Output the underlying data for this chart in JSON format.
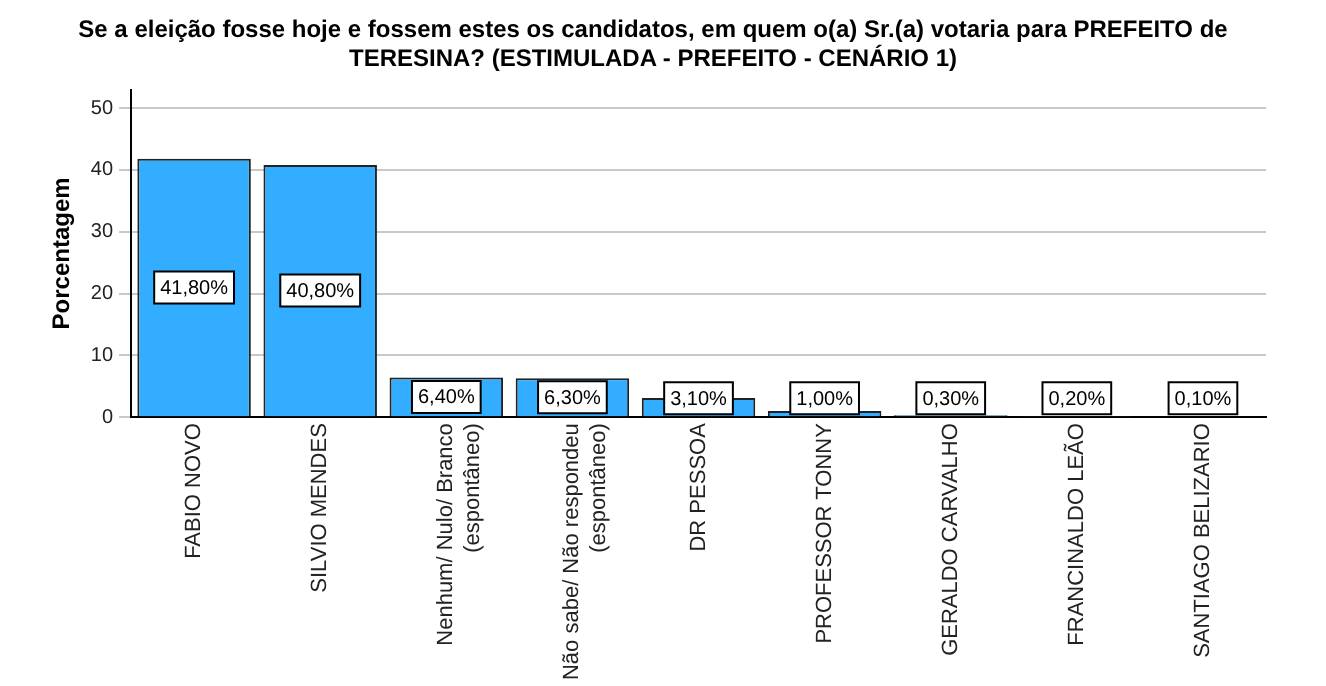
{
  "chart_data": {
    "type": "bar",
    "title": "Se a eleição fosse hoje e fossem estes os candidatos, em quem o(a) Sr.(a) votaria para PREFEITO de\nTERESINA? (ESTIMULADA - PREFEITO - CENÁRIO 1)",
    "ylabel": "Porcentagem",
    "categories": [
      "FABIO NOVO",
      "SILVIO MENDES",
      "Nenhum/ Nulo/ Branco\n(espontâneo)",
      "Não sabe/ Não respondeu\n(espontâneo)",
      "DR PESSOA",
      "PROFESSOR TONNY",
      "GERALDO CARVALHO",
      "FRANCINALDO LEÃO",
      "SANTIAGO BELIZARIO"
    ],
    "values": [
      41.8,
      40.8,
      6.4,
      6.3,
      3.1,
      1.0,
      0.3,
      0.2,
      0.1
    ],
    "value_labels": [
      "41,80%",
      "40,80%",
      "6,40%",
      "6,30%",
      "3,10%",
      "1,00%",
      "0,30%",
      "0,20%",
      "0,10%"
    ],
    "color": "#33adff",
    "ylim": [
      0,
      53
    ],
    "yticks": [
      0,
      10,
      20,
      30,
      40,
      50
    ],
    "grid": "y",
    "legend": false
  }
}
